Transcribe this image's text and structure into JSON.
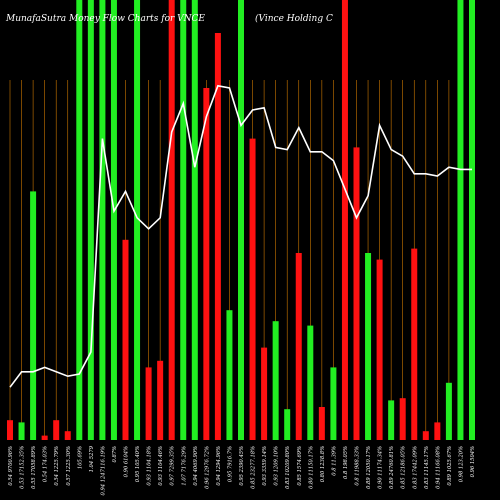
{
  "chart_data": {
    "type": "bar",
    "title_left": "MunafaSutra  Money Flow  Charts for VNCE",
    "title_right": "(Vince  Holding C",
    "colors": {
      "background": "#000000",
      "up": "#22ee22",
      "down": "#ff1111",
      "line": "#ffffff",
      "grid": "#cc7700",
      "text": "#ffffff"
    },
    "grid": true,
    "categories": [
      "0.54 9700.96%",
      "0.53 17152.35%",
      "0.55 17058.89%",
      "0.54 174.03%",
      "0.54 1225.79%",
      "0.57 1225.30%",
      "105.69%",
      "1.04 5279",
      "0.94 1247116.19%",
      "0.87%",
      "0.90 6104%",
      "0.95 105.40%",
      "0.93 1104.18%",
      "0.93 1104.46%",
      "0.97 7299.35%",
      "1.07 7176.29%",
      "0.94 4069.90%",
      "0.96 12976.72%",
      "0.94 1294.96%",
      "0.95 7916.7%",
      "0.95 2390.45%",
      "0.85 23277.18%",
      "0.93 3359.14%",
      "0.93 1209.10%",
      "0.83 10209.80%",
      "0.85 1574.69%",
      "0.80 11150.17%",
      "0.80 1238.8%",
      "0.8 11.39%",
      "0.8 198.05%",
      "0.8 11988.33%",
      "0.89 12050.17%",
      "0.90 11174.34%",
      "0.89 24760.81%",
      "0.85 12186.05%",
      "0.83 17442.09%",
      "0.83 11145.17%",
      "0.94 11166.08%",
      "0.89 1025.67%",
      "0.98 123.20%",
      "0.96 1504%"
    ],
    "direction": [
      "down",
      "up",
      "up",
      "down",
      "down",
      "down",
      "up",
      "up",
      "up",
      "up",
      "down",
      "up",
      "down",
      "down",
      "down",
      "up",
      "up",
      "down",
      "down",
      "up",
      "up",
      "down",
      "down",
      "up",
      "up",
      "down",
      "up",
      "down",
      "up",
      "down",
      "down",
      "up",
      "down",
      "up",
      "down",
      "down",
      "down",
      "down",
      "up",
      "up",
      "up"
    ],
    "values": [
      4.5,
      4.0,
      56.5,
      1.0,
      4.5,
      2.0,
      100,
      100,
      100,
      100,
      45.5,
      100,
      16.5,
      18.0,
      100,
      100,
      100,
      80.0,
      92.5,
      29.5,
      100,
      68.5,
      21.0,
      27.0,
      7.0,
      42.5,
      26.0,
      7.5,
      16.5,
      100,
      66.5,
      42.5,
      41.0,
      9.0,
      9.5,
      43.5,
      2.0,
      4.0,
      13.0,
      100,
      100
    ],
    "ylim": [
      0,
      100
    ],
    "line_values": [
      12.0,
      15.5,
      15.5,
      16.5,
      15.5,
      14.5,
      15.0,
      20.0,
      68.5,
      52.0,
      56.5,
      50.5,
      48.0,
      50.5,
      70.0,
      76.5,
      62.0,
      73.5,
      80.5,
      80.0,
      71.5,
      75.0,
      75.5,
      66.5,
      66.0,
      71.0,
      65.5,
      65.5,
      63.5,
      57.0,
      50.5,
      55.5,
      71.5,
      66.0,
      64.5,
      60.5,
      60.5,
      60.0,
      62.0,
      61.5,
      61.5
    ],
    "line_ylim": [
      0,
      100
    ]
  }
}
